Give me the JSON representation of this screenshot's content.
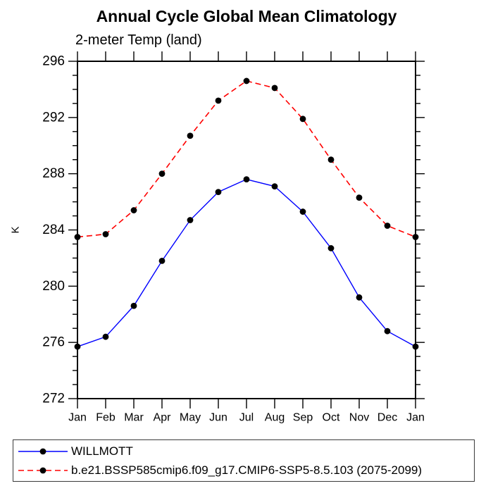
{
  "title": "Annual Cycle Global Mean Climatology",
  "subtitle": "2-meter Temp (land)",
  "chart_data": {
    "type": "line",
    "title": "Annual Cycle Global Mean Climatology",
    "subtitle": "2-meter Temp (land)",
    "xlabel": "",
    "ylabel": "K",
    "categories": [
      "Jan",
      "Feb",
      "Mar",
      "Apr",
      "May",
      "Jun",
      "Jul",
      "Aug",
      "Sep",
      "Oct",
      "Nov",
      "Dec",
      "Jan"
    ],
    "ylim": [
      272,
      296
    ],
    "y_major_ticks": [
      272,
      276,
      280,
      284,
      288,
      292,
      296
    ],
    "y_minor_step": 1,
    "grid": false,
    "legend_position": "bottom-left-box",
    "axis_color": "#000000",
    "marker": "circle",
    "marker_color": "#000000",
    "series": [
      {
        "name": "WILLMOTT",
        "color": "#0000ff",
        "style": "solid",
        "values": [
          275.7,
          276.4,
          278.6,
          281.8,
          284.7,
          286.7,
          287.6,
          287.1,
          285.3,
          282.7,
          279.2,
          276.8,
          275.7
        ]
      },
      {
        "name": "b.e21.BSSP585cmip6.f09_g17.CMIP6-SSP5-8.5.103 (2075-2099)",
        "color": "#ff0000",
        "style": "dashed",
        "values": [
          283.5,
          283.7,
          285.4,
          288.0,
          290.7,
          293.2,
          294.6,
          294.1,
          291.9,
          289.0,
          286.3,
          284.3,
          283.5
        ]
      }
    ]
  }
}
